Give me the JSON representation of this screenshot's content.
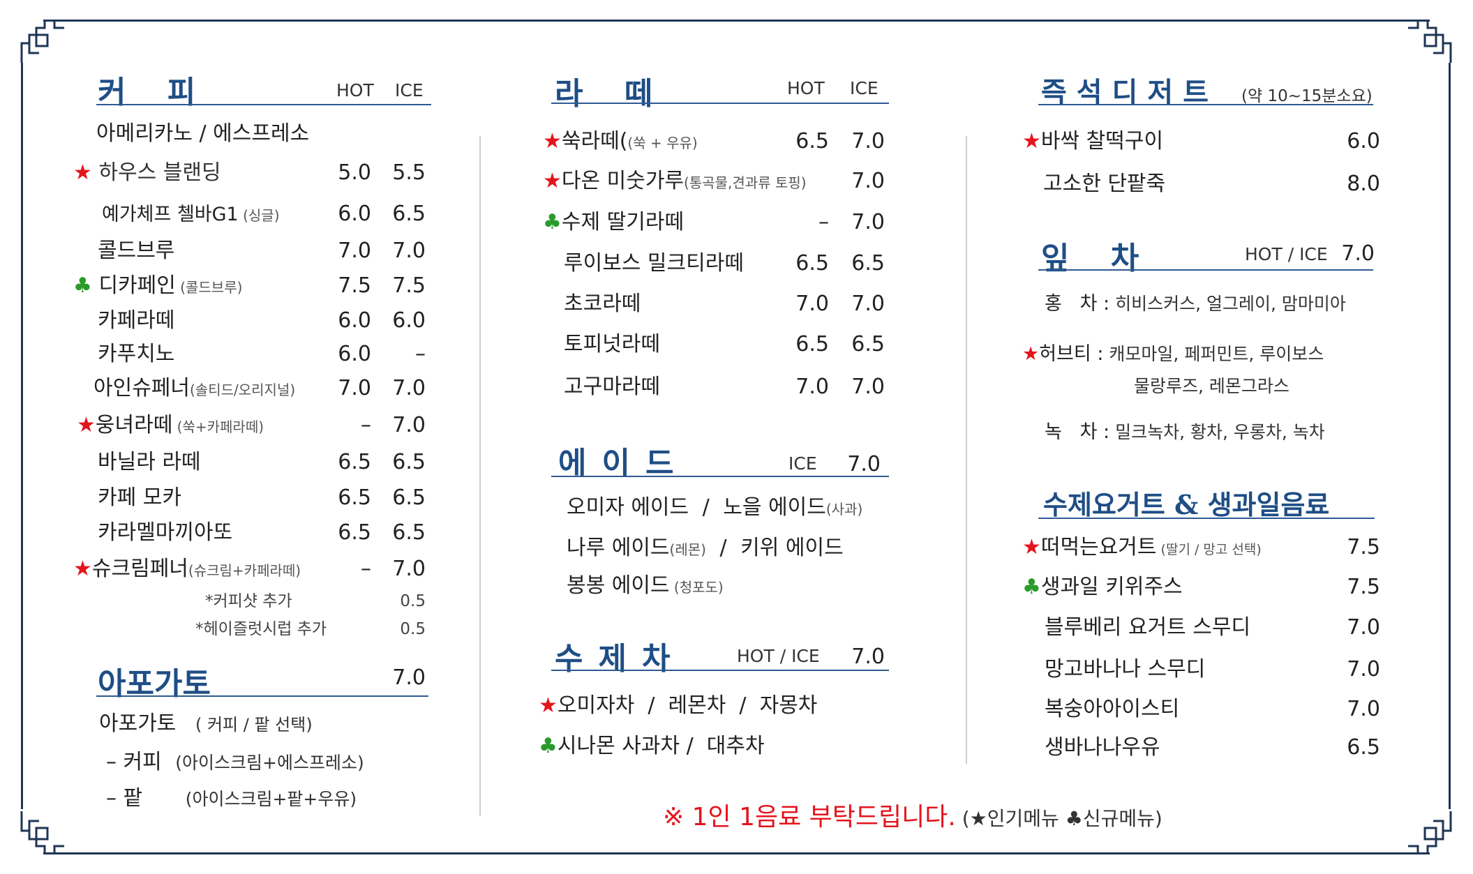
{
  "coffee": {
    "title": "커 피",
    "hot": "HOT",
    "ice": "ICE",
    "items": [
      {
        "mark": "",
        "name": "아메리카노 / 에스프레소",
        "note": "",
        "hot": "",
        "ice": ""
      },
      {
        "mark": "★",
        "name": " 하우스 블랜딩",
        "note": "",
        "hot": "5.0",
        "ice": "5.5"
      },
      {
        "mark": "",
        "name": "예가체프 첼바G1",
        "note": " (싱글)",
        "hot": "6.0",
        "ice": "6.5"
      },
      {
        "mark": "",
        "name": "콜드브루",
        "note": "",
        "hot": "7.0",
        "ice": "7.0"
      },
      {
        "mark": "♣",
        "name": " 디카페인",
        "note": " (콜드브루)",
        "hot": "7.5",
        "ice": "7.5"
      },
      {
        "mark": "",
        "name": "카페라떼",
        "note": "",
        "hot": "6.0",
        "ice": "6.0"
      },
      {
        "mark": "",
        "name": "카푸치노",
        "note": "",
        "hot": "6.0",
        "ice": "–"
      },
      {
        "mark": "",
        "name": "아인슈페너",
        "note": "(솔티드/오리지널)",
        "hot": "7.0",
        "ice": "7.0"
      },
      {
        "mark": "★",
        "name": "웅녀라떼",
        "note": " (쑥+카페라떼)",
        "hot": "–",
        "ice": "7.0"
      },
      {
        "mark": "",
        "name": "바닐라 라떼",
        "note": "",
        "hot": "6.5",
        "ice": "6.5"
      },
      {
        "mark": "",
        "name": "카페 모카",
        "note": "",
        "hot": "6.5",
        "ice": "6.5"
      },
      {
        "mark": "",
        "name": "카라멜마끼아또",
        "note": "",
        "hot": "6.5",
        "ice": "6.5"
      },
      {
        "mark": "★",
        "name": "슈크림페너",
        "note": "(슈크림+카페라떼)",
        "hot": "–",
        "ice": "7.0"
      }
    ],
    "addons": [
      {
        "name": "*커피샷 추가",
        "price": "0.5"
      },
      {
        "name": "*헤이즐럿시럽 추가",
        "price": "0.5"
      }
    ]
  },
  "affogato": {
    "title": "아포가토",
    "price": "7.0",
    "line1": "아포가토",
    "line1_note": "( 커피 / 팥  선택)",
    "options": [
      {
        "name": "– 커피",
        "desc": "(아이스크림+에스프레소)"
      },
      {
        "name": "– 팥",
        "desc": "(아이스크림+팥+우유)"
      }
    ]
  },
  "latte": {
    "title": "라 떼",
    "hot": "HOT",
    "ice": "ICE",
    "items": [
      {
        "mark": "★",
        "name": "쑥라떼(",
        "note": "(쑥 + 우유)",
        "hot": "6.5",
        "ice": "7.0"
      },
      {
        "mark": "★",
        "name": "다온 미숫가루",
        "note": "(통곡물,견과류 토핑)",
        "hot": "",
        "ice": "7.0"
      },
      {
        "mark": "♣",
        "name": "수제 딸기라떼",
        "note": "",
        "hot": "–",
        "ice": "7.0"
      },
      {
        "mark": "",
        "name": "루이보스 밀크티라떼",
        "note": "",
        "hot": "6.5",
        "ice": "6.5"
      },
      {
        "mark": "",
        "name": "초코라떼",
        "note": "",
        "hot": "7.0",
        "ice": "7.0"
      },
      {
        "mark": "",
        "name": "토피넛라떼",
        "note": "",
        "hot": "6.5",
        "ice": "6.5"
      },
      {
        "mark": "",
        "name": "고구마라떼",
        "note": "",
        "hot": "7.0",
        "ice": "7.0"
      }
    ]
  },
  "ade": {
    "title": "에이드",
    "ice": "ICE",
    "price": "7.0",
    "lines": [
      {
        "a": "오미자 에이드",
        "a_note": "",
        "sep": " / ",
        "b": "노을 에이드",
        "b_note": "(사과)"
      },
      {
        "a": "나루 에이드",
        "a_note": "(레몬)",
        "sep": " / ",
        "b": "키위 에이드",
        "b_note": ""
      },
      {
        "a": "봉봉 에이드",
        "a_note": " (청포도)",
        "sep": "",
        "b": "",
        "b_note": ""
      }
    ]
  },
  "tea_handmade": {
    "title": "수제차",
    "hot_ice": "HOT / ICE",
    "price": "7.0",
    "lines": [
      {
        "mark": "★",
        "text": "오미자차  /  레몬차  /  자몽차"
      },
      {
        "mark": "♣",
        "text": "시나몬 사과차 /  대추차"
      }
    ]
  },
  "dessert": {
    "title": "즉석디저트",
    "note": "(약 10~15분소요)",
    "items": [
      {
        "mark": "★",
        "name": "바싹 찰떡구이",
        "price": "6.0"
      },
      {
        "mark": "",
        "name": "고소한 단팥죽",
        "price": "8.0"
      }
    ]
  },
  "leaf_tea": {
    "title": "잎 차",
    "hot_ice": "HOT / ICE",
    "price": "7.0",
    "rows": [
      {
        "mark": "",
        "label": "홍   차 :",
        "desc": "히비스커스, 얼그레이, 맘마미아"
      },
      {
        "mark": "★",
        "label": "허브티 :",
        "desc": "캐모마일, 페퍼민트, 루이보스"
      },
      {
        "mark": "",
        "label": "",
        "desc": "물랑루즈, 레몬그라스"
      },
      {
        "mark": "",
        "label": "녹   차 :",
        "desc": "밀크녹차, 황차, 우롱차, 녹차"
      }
    ]
  },
  "yogurt": {
    "title": "수제요거트 & 생과일음료",
    "items": [
      {
        "mark": "★",
        "name": "떠먹는요거트",
        "note": " (딸기 / 망고 선택)",
        "price": "7.5"
      },
      {
        "mark": "♣",
        "name": "생과일 키위주스",
        "note": "",
        "price": "7.5"
      },
      {
        "mark": "",
        "name": "블루베리 요거트 스무디",
        "note": "",
        "price": "7.0"
      },
      {
        "mark": "",
        "name": "망고바나나 스무디",
        "note": "",
        "price": "7.0"
      },
      {
        "mark": "",
        "name": "복숭아아이스티",
        "note": "",
        "price": "7.0"
      },
      {
        "mark": "",
        "name": "생바나나우유",
        "note": "",
        "price": "6.5"
      }
    ]
  },
  "notice": {
    "text": "※ 1인 1음료 부탁드립니다.",
    "legend_open": " (",
    "star": "★",
    "star_label": "인기메뉴  ",
    "club": "♣",
    "club_label": "신규메뉴)"
  },
  "colors": {
    "frame": "#1f3556",
    "title": "#1f4e86",
    "star": "#e4141c",
    "club": "#2a9a2a"
  }
}
